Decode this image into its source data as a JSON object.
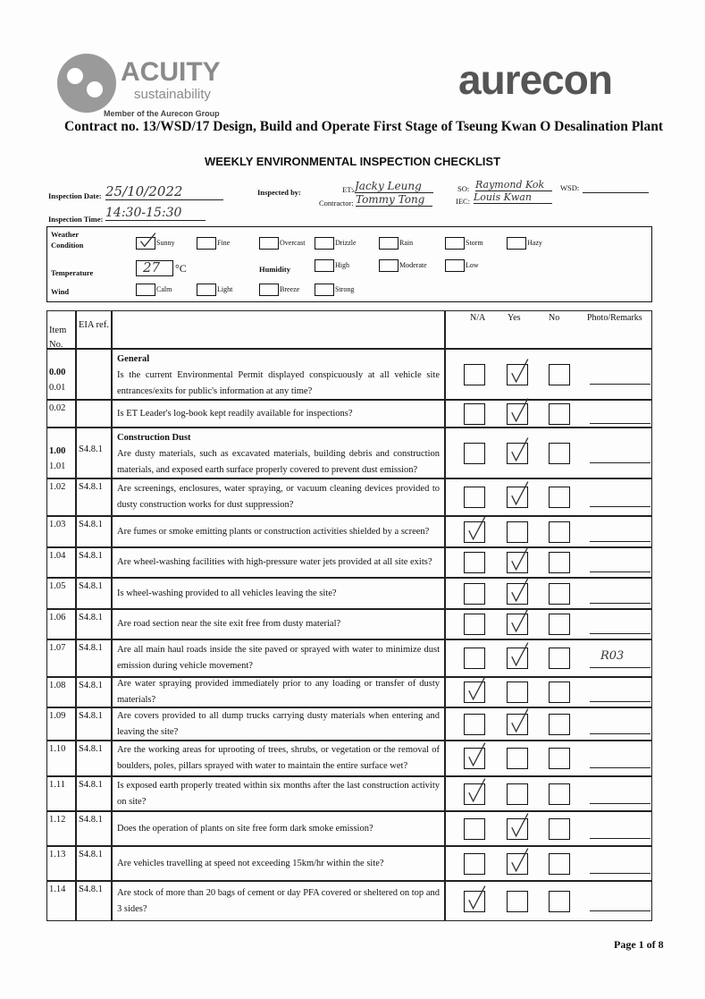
{
  "header": {
    "logo_left": "ACUITY",
    "logo_left_sub": "sustainability",
    "member": "Member of the Aurecon Group",
    "logo_right": "aurecon",
    "contract": "Contract no. 13/WSD/17 Design, Build and Operate First Stage of Tseung Kwan O Desalination Plant",
    "title": "WEEKLY ENVIRONMENTAL INSPECTION CHECKLIST"
  },
  "info": {
    "date_label": "Inspection Date:",
    "date": "25/10/2022",
    "time_label": "Inspection Time:",
    "time": "14:30-15:30",
    "inspected_label": "Inspected by:",
    "et_label": "ET:",
    "et": "Jacky Leung",
    "contractor_label": "Contractor:",
    "contractor": "Tommy Tong",
    "so_label": "SO:",
    "so": "Raymond Kok",
    "iec_label": "IEC:",
    "iec": "Louis Kwan",
    "wsd_label": "WSD:"
  },
  "weather": {
    "label": "Weather",
    "condition": {
      "label": "Condition",
      "options": [
        "Sunny",
        "Fine",
        "Overcast",
        "Drizzle",
        "Rain",
        "Storm",
        "Hazy"
      ],
      "checked": "Sunny"
    },
    "temperature": {
      "label": "Temperature",
      "value": "27",
      "unit": "°C"
    },
    "humidity": {
      "label": "Humidity",
      "options": [
        "High",
        "Moderate",
        "Low"
      ]
    },
    "wind": {
      "label": "Wind",
      "options": [
        "Calm",
        "Light",
        "Breeze",
        "Strong"
      ]
    }
  },
  "table": {
    "headers": {
      "item": "Item No.",
      "eia": "EIA ref.",
      "na": "N/A",
      "yes": "Yes",
      "no": "No",
      "remarks": "Photo/Remarks"
    },
    "rows": [
      {
        "item": "0.00",
        "sub": "0.01",
        "section": "General",
        "question": "Is the current Environmental Permit displayed conspicuously at all vehicle site entrances/exits for public's information at any time?",
        "check": "yes"
      },
      {
        "item": "0.02",
        "question": "Is ET Leader's log-book kept readily available for inspections?",
        "check": "yes"
      },
      {
        "item": "1.00",
        "sub": "1.01",
        "eia": "S4.8.1",
        "section": "Construction Dust",
        "question": "Are dusty materials, such as excavated materials, building debris and construction materials, and exposed earth surface properly covered to prevent dust emission?",
        "check": "yes"
      },
      {
        "item": "1.02",
        "eia": "S4.8.1",
        "question": "Are screenings, enclosures, water spraying, or vacuum cleaning devices provided to dusty construction works for dust suppression?",
        "check": "yes"
      },
      {
        "item": "1.03",
        "eia": "S4.8.1",
        "question": "Are fumes or smoke emitting plants or construction activities shielded by a screen?",
        "check": "na"
      },
      {
        "item": "1.04",
        "eia": "S4.8.1",
        "question": "Are wheel-washing facilities with high-pressure water jets provided at all site exits?",
        "check": "yes"
      },
      {
        "item": "1.05",
        "eia": "S4.8.1",
        "question": "Is wheel-washing provided to all vehicles leaving the site?",
        "check": "yes"
      },
      {
        "item": "1.06",
        "eia": "S4.8.1",
        "question": "Are road section near the site exit free from dusty material?",
        "check": "yes"
      },
      {
        "item": "1.07",
        "eia": "S4.8.1",
        "question": "Are all main haul roads inside the site paved or sprayed with water to minimize dust emission during vehicle movement?",
        "check": "yes",
        "remarks": "R03"
      },
      {
        "item": "1.08",
        "eia": "S4.8.1",
        "question": "Are water spraying provided immediately prior to any loading or transfer of dusty materials?",
        "check": "na"
      },
      {
        "item": "1.09",
        "eia": "S4.8.1",
        "question": "Are covers provided to all dump trucks carrying dusty materials when entering and leaving the site?",
        "check": "yes"
      },
      {
        "item": "1.10",
        "eia": "S4.8.1",
        "question": "Are the working areas for uprooting of trees, shrubs, or vegetation or the removal of boulders, poles, pillars sprayed with water to maintain the entire surface wet?",
        "check": "na"
      },
      {
        "item": "1.11",
        "eia": "S4.8.1",
        "question": "Is exposed earth properly treated within six months after the last construction activity on site?",
        "check": "na"
      },
      {
        "item": "1.12",
        "eia": "S4.8.1",
        "question": "Does the operation of plants on site free form dark smoke emission?",
        "check": "yes"
      },
      {
        "item": "1.13",
        "eia": "S4.8.1",
        "question": "Are vehicles travelling at speed not exceeding 15km/hr within the site?",
        "check": "yes"
      },
      {
        "item": "1.14",
        "eia": "S4.8.1",
        "question": "Are stock of more than 20 bags of cement or day PFA covered or sheltered on top and 3 sides?",
        "check": "na"
      }
    ]
  },
  "footer": {
    "page": "Page 1 of 8"
  }
}
